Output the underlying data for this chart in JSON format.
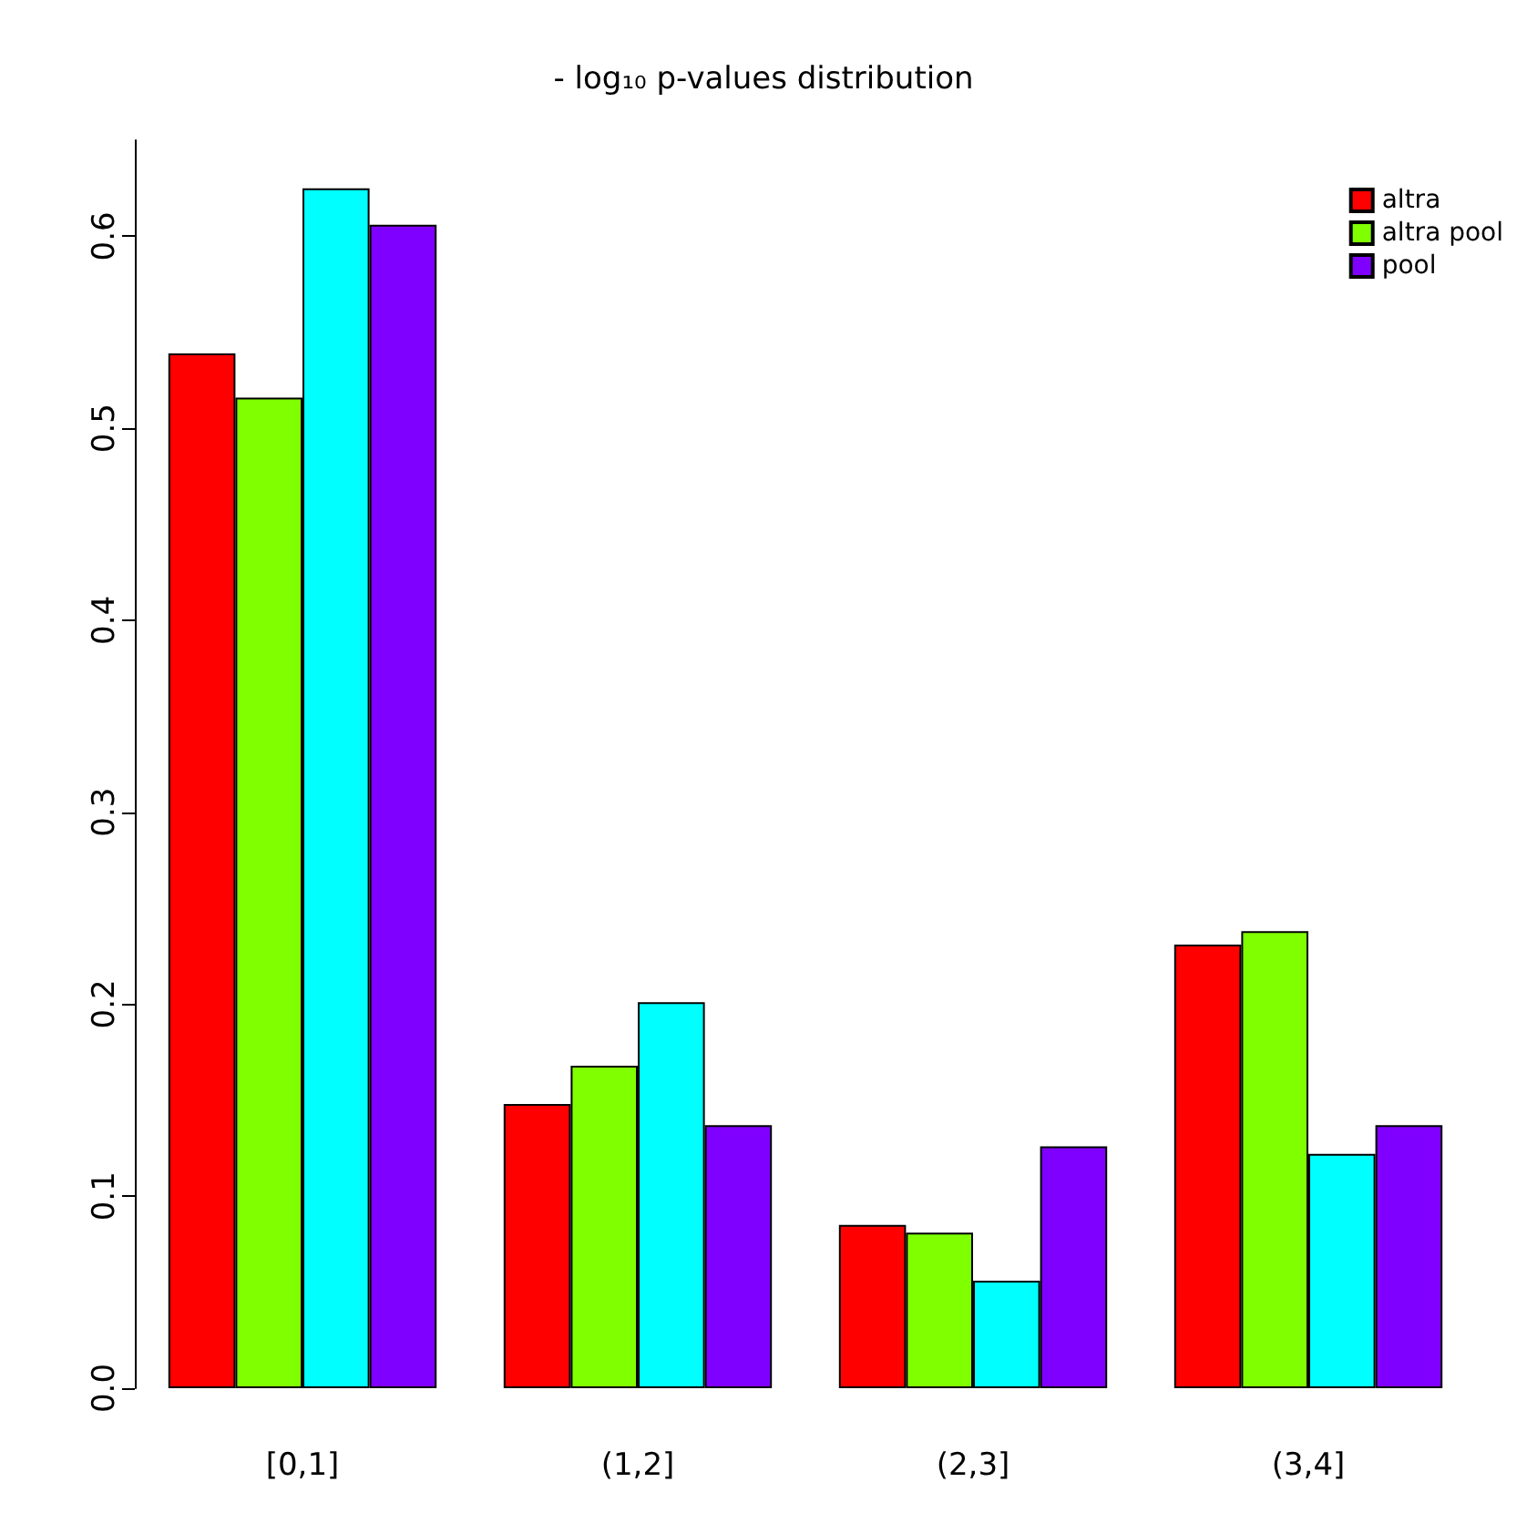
{
  "chart_data": {
    "type": "bar",
    "title": "- log₁₀ p-values distribution",
    "categories": [
      "[0,1]",
      "(1,2]",
      "(2,3]",
      "(3,4]"
    ],
    "series": [
      {
        "name": "altra",
        "color": "#ff0000",
        "values": [
          0.539,
          0.148,
          0.085,
          0.231
        ]
      },
      {
        "name": "altra pool",
        "color": "#80ff00",
        "values": [
          0.516,
          0.168,
          0.081,
          0.238
        ]
      },
      {
        "color": "#00ffff",
        "values": [
          0.625,
          0.201,
          0.056,
          0.122
        ]
      },
      {
        "name": "pool",
        "color": "#8000ff",
        "values": [
          0.606,
          0.137,
          0.126,
          0.137
        ]
      }
    ],
    "ylim": [
      0,
      0.65
    ],
    "yticks": [
      {
        "value": 0,
        "label": "0.0"
      },
      0.1,
      0.2,
      0.3,
      0.4,
      0.5,
      0.6
    ],
    "grid": false,
    "legend": "top right"
  }
}
